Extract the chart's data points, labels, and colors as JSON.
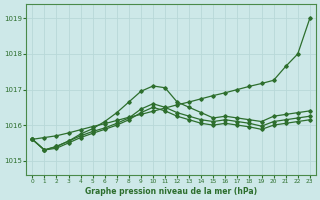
{
  "xlabel": "Graphe pression niveau de la mer (hPa)",
  "ylim": [
    1014.6,
    1019.4
  ],
  "xlim": [
    -0.5,
    23.5
  ],
  "yticks": [
    1015,
    1016,
    1017,
    1018,
    1019
  ],
  "xticks": [
    0,
    1,
    2,
    3,
    4,
    5,
    6,
    7,
    8,
    9,
    10,
    11,
    12,
    13,
    14,
    15,
    16,
    17,
    18,
    19,
    20,
    21,
    22,
    23
  ],
  "bg_color": "#cde8e8",
  "grid_color": "#b8d8d8",
  "line_color": "#2d6e2d",
  "series": [
    [
      1015.6,
      1015.65,
      1015.7,
      1015.78,
      1015.87,
      1015.96,
      1016.04,
      1016.13,
      1016.22,
      1016.3,
      1016.39,
      1016.48,
      1016.57,
      1016.65,
      1016.74,
      1016.83,
      1016.91,
      1017.0,
      1017.09,
      1017.17,
      1017.26,
      1017.65,
      1018.0,
      1019.0
    ],
    [
      1015.6,
      1015.3,
      1015.4,
      1015.55,
      1015.75,
      1015.9,
      1016.1,
      1016.35,
      1016.65,
      1016.95,
      1017.1,
      1017.05,
      1016.65,
      1016.5,
      1016.35,
      1016.2,
      1016.25,
      1016.2,
      1016.15,
      1016.1,
      1016.25,
      1016.3,
      1016.35,
      1016.4
    ],
    [
      1015.6,
      1015.3,
      1015.4,
      1015.55,
      1015.7,
      1015.82,
      1015.92,
      1016.05,
      1016.2,
      1016.45,
      1016.6,
      1016.5,
      1016.35,
      1016.25,
      1016.15,
      1016.1,
      1016.15,
      1016.1,
      1016.05,
      1015.97,
      1016.1,
      1016.15,
      1016.2,
      1016.25
    ],
    [
      1015.6,
      1015.3,
      1015.35,
      1015.5,
      1015.65,
      1015.77,
      1015.88,
      1016.0,
      1016.15,
      1016.35,
      1016.5,
      1016.4,
      1016.25,
      1016.15,
      1016.05,
      1016.0,
      1016.05,
      1016.0,
      1015.95,
      1015.88,
      1016.0,
      1016.05,
      1016.1,
      1016.15
    ]
  ]
}
